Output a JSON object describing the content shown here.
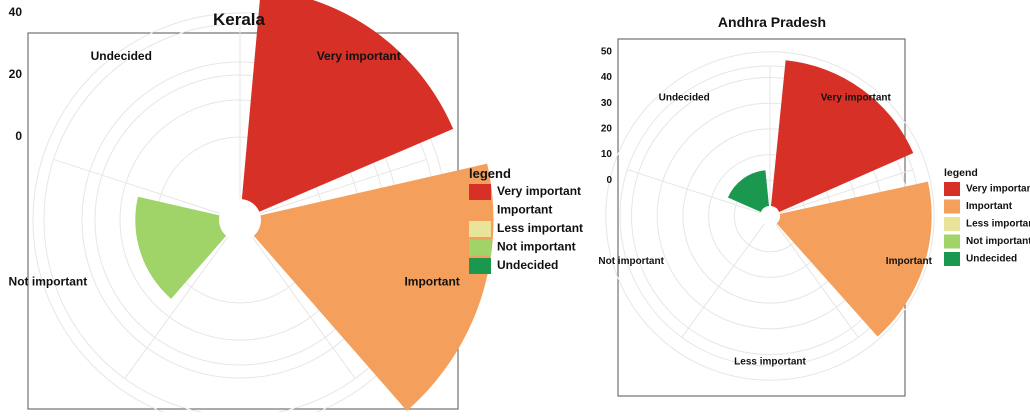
{
  "legend": {
    "title": "legend",
    "items": [
      {
        "label": "Very important",
        "color": "#d73027"
      },
      {
        "label": "Important",
        "color": "#f4a05c"
      },
      {
        "label": "Less important",
        "color": "#e8e49a"
      },
      {
        "label": "Not important",
        "color": "#a0d468"
      },
      {
        "label": "Undecided",
        "color": "#1a9850"
      }
    ]
  },
  "chart_data": [
    {
      "type": "polar_bar",
      "title": "Kerala",
      "categories": [
        "Very important",
        "Important",
        "Less important",
        "Not important",
        "Undecided"
      ],
      "values": [
        48,
        55,
        0,
        7,
        0
      ],
      "rlim": [
        -20,
        60
      ],
      "r_ticks": [
        0,
        20,
        40
      ],
      "grid": true,
      "legend_position": "right"
    },
    {
      "type": "polar_bar",
      "title": "Andhra Pradesh",
      "categories": [
        "Very important",
        "Important",
        "Less important",
        "Not important",
        "Undecided"
      ],
      "values": [
        47,
        49,
        0,
        0,
        4
      ],
      "rlim": [
        -10,
        60
      ],
      "r_ticks": [
        0,
        10,
        20,
        30,
        40,
        50
      ],
      "grid": true,
      "legend_position": "right"
    }
  ]
}
